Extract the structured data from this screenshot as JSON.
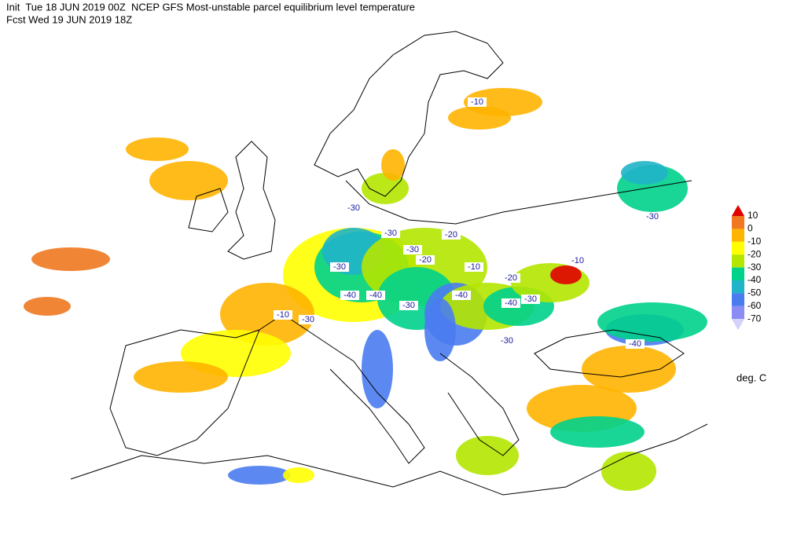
{
  "header": {
    "line1": "Init  Tue 18 JUN 2019 00Z  NCEP GFS Most-unstable parcel equilibrium level temperature",
    "line2": "Fcst Wed 19 JUN 2019 18Z"
  },
  "colorbar": {
    "levels": [
      10,
      0,
      -10,
      -20,
      -30,
      -40,
      -50,
      -60,
      -70
    ],
    "colors": [
      "#e00000",
      "#f07820",
      "#ffb400",
      "#ffff00",
      "#b4e600",
      "#00d28c",
      "#20b4c8",
      "#4a7cf0",
      "#8c8cf5",
      "#d2d2fa"
    ],
    "unit": "deg. C"
  },
  "map_labels": [
    "-10",
    "-30",
    "-30",
    "-20",
    "-30",
    "-20",
    "-30",
    "-10",
    "-10",
    "-20",
    "-40",
    "-40",
    "-40",
    "-40",
    "-30",
    "-30",
    "-10",
    "-30",
    "-30",
    "-30",
    "-40"
  ]
}
